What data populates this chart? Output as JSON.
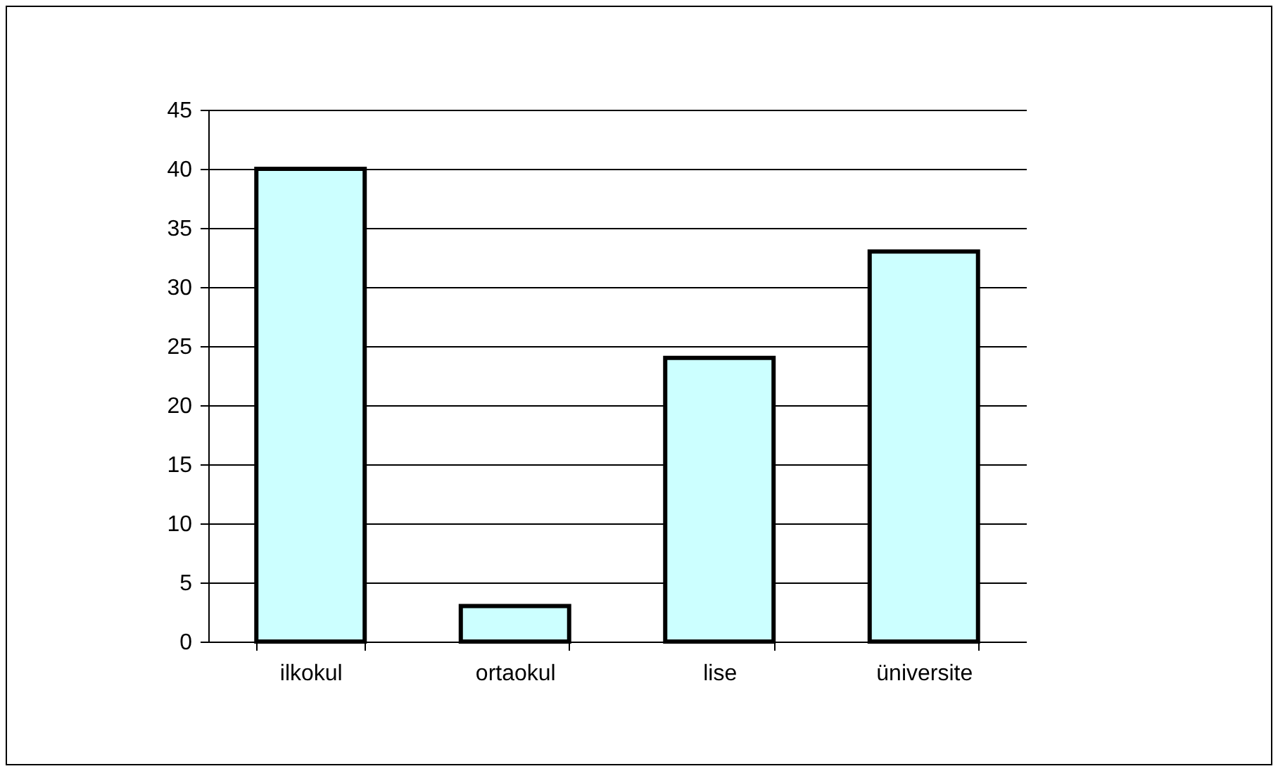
{
  "chart_data": {
    "type": "bar",
    "categories": [
      "ilkokul",
      "ortaokul",
      "lise",
      "üniversite"
    ],
    "values": [
      40,
      3,
      24,
      33
    ],
    "color": "#ccffff",
    "ylim": [
      0,
      45
    ],
    "yticks": [
      0,
      5,
      10,
      15,
      20,
      25,
      30,
      35,
      40,
      45
    ],
    "grid": "y"
  }
}
